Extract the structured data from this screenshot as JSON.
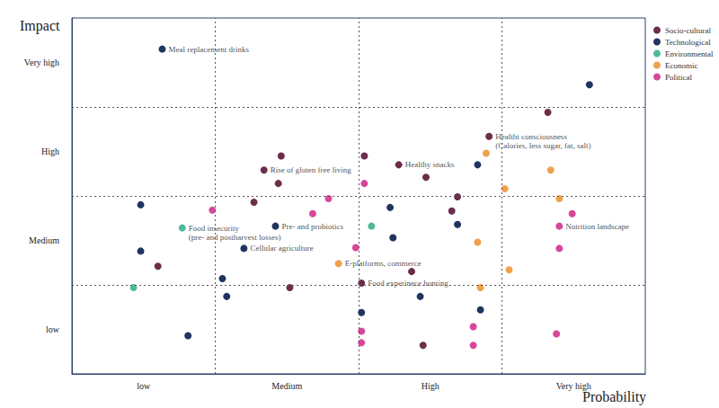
{
  "chart_data": {
    "type": "scatter",
    "x_label": "Probability",
    "y_label": "Impact",
    "xlim": [
      0,
      4
    ],
    "ylim": [
      0,
      4
    ],
    "xticks": [
      {
        "value": 0.5,
        "label": "low"
      },
      {
        "value": 1.5,
        "label": "Medium"
      },
      {
        "value": 2.5,
        "label": "High"
      },
      {
        "value": 3.5,
        "label": "Very high"
      }
    ],
    "yticks": [
      {
        "value": 0.5,
        "label": "low"
      },
      {
        "value": 1.5,
        "label": "Medium"
      },
      {
        "value": 2.5,
        "label": "High"
      },
      {
        "value": 3.5,
        "label": "Very high"
      }
    ],
    "grid": true,
    "legend": "top-right",
    "marker": "circle",
    "series": [
      {
        "name": "Socio-cultural",
        "color": "#6b2d4a",
        "values": [
          [
            3.32,
            2.94
          ],
          [
            2.91,
            2.67
          ],
          [
            1.46,
            2.45
          ],
          [
            2.04,
            2.45
          ],
          [
            2.28,
            2.35
          ],
          [
            1.34,
            2.29
          ],
          [
            2.47,
            2.21
          ],
          [
            1.44,
            2.14
          ],
          [
            2.69,
            1.99
          ],
          [
            1.27,
            1.93
          ],
          [
            2.65,
            1.83
          ],
          [
            0.6,
            1.21
          ],
          [
            2.37,
            1.15
          ],
          [
            2.02,
            1.02
          ],
          [
            1.52,
            0.97
          ],
          [
            2.45,
            0.32
          ]
        ]
      },
      {
        "name": "Technological",
        "color": "#1f3560",
        "values": [
          [
            0.63,
            3.65
          ],
          [
            3.61,
            3.25
          ],
          [
            2.83,
            2.35
          ],
          [
            0.48,
            1.9
          ],
          [
            2.22,
            1.87
          ],
          [
            2.69,
            1.68
          ],
          [
            1.42,
            1.66
          ],
          [
            2.24,
            1.53
          ],
          [
            1.2,
            1.41
          ],
          [
            0.48,
            1.38
          ],
          [
            1.05,
            1.07
          ],
          [
            2.43,
            0.87
          ],
          [
            1.08,
            0.87
          ],
          [
            2.85,
            0.72
          ],
          [
            2.02,
            0.69
          ],
          [
            0.81,
            0.43
          ]
        ]
      },
      {
        "name": "Environmental",
        "color": "#4fb99a",
        "values": [
          [
            2.09,
            1.66
          ],
          [
            0.77,
            1.64
          ],
          [
            0.43,
            0.97
          ]
        ]
      },
      {
        "name": "Economic",
        "color": "#f0a04b",
        "values": [
          [
            2.89,
            2.48
          ],
          [
            3.34,
            2.29
          ],
          [
            3.02,
            2.08
          ],
          [
            3.4,
            1.97
          ],
          [
            2.83,
            1.48
          ],
          [
            1.86,
            1.24
          ],
          [
            3.05,
            1.17
          ],
          [
            2.85,
            0.97
          ]
        ]
      },
      {
        "name": "Political",
        "color": "#d6479b",
        "values": [
          [
            2.04,
            2.14
          ],
          [
            1.79,
            1.97
          ],
          [
            0.98,
            1.84
          ],
          [
            3.49,
            1.8
          ],
          [
            1.68,
            1.8
          ],
          [
            3.4,
            1.66
          ],
          [
            1.98,
            1.42
          ],
          [
            3.4,
            1.41
          ],
          [
            2.8,
            0.53
          ],
          [
            2.02,
            0.48
          ],
          [
            3.38,
            0.45
          ],
          [
            2.02,
            0.35
          ],
          [
            2.8,
            0.32
          ]
        ]
      }
    ],
    "annotations": [
      {
        "text": "Meal replacement drinks",
        "x": 0.63,
        "y": 3.65
      },
      {
        "text": "Healtht consciousness\n(Calories, less sugar, fat, salt)",
        "x": 2.91,
        "y": 2.67
      },
      {
        "text": "Healthy snacks",
        "x": 2.28,
        "y": 2.35
      },
      {
        "text": "Rise of gluten free living",
        "x": 1.34,
        "y": 2.29
      },
      {
        "text": "Pre- and probiotics",
        "x": 1.42,
        "y": 1.66
      },
      {
        "text": "Food insecurity\n(pre- and postharvest losses)",
        "x": 0.77,
        "y": 1.64
      },
      {
        "text": "Nutrition landscape",
        "x": 3.4,
        "y": 1.66
      },
      {
        "text": "Cellular agriculture",
        "x": 1.2,
        "y": 1.41
      },
      {
        "text": "E-platforms, commerce",
        "x": 1.86,
        "y": 1.24
      },
      {
        "text": "Food experinece hunting",
        "x": 2.02,
        "y": 1.02
      }
    ]
  }
}
